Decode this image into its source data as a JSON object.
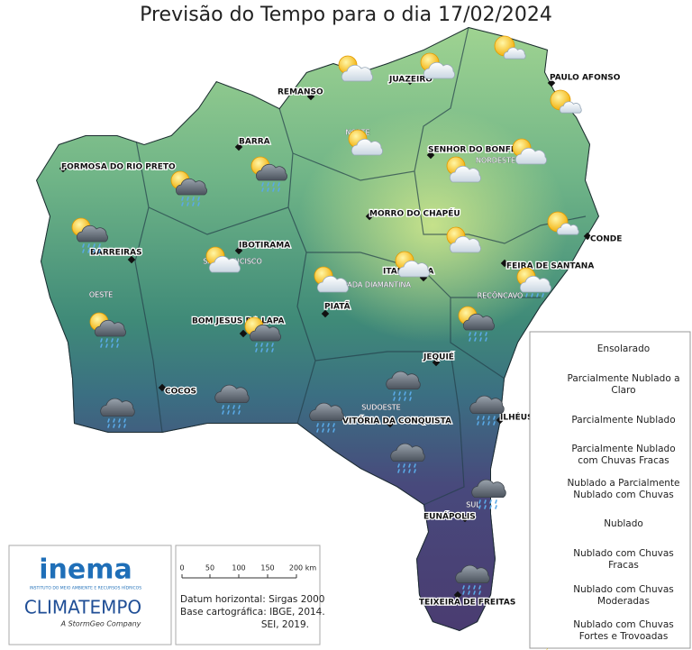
{
  "title": "Previsão do Tempo para o dia 17/02/2024",
  "cities": [
    "REMANSO",
    "JUAZEIRO",
    "PAULO AFONSO",
    "BARRA",
    "SENHOR DO BONFIM",
    "FORMOSA DO RIO PRETO",
    "MORRO DO CHAPÉU",
    "CONDE",
    "IBOTIRAMA",
    "BARREIRAS",
    "FEIRA DE SANTANA",
    "ITABERABA",
    "PIATÃ",
    "BOM JESUS DA LAPA",
    "JEQUIÉ",
    "COCOS",
    "ILHÉUS",
    "VITÓRIA DA CONQUISTA",
    "EUNÁPOLIS",
    "TEIXEIRA DE FREITAS"
  ],
  "regions": [
    "NORTE",
    "NORDESTE",
    "SÃO FRANCISCO",
    "CHAPADA DIAMANTINA",
    "OESTE",
    "RECÔNCAVO",
    "SUDOESTE",
    "SUL"
  ],
  "legend": [
    "Ensolarado",
    "Parcialmente Nublado a Claro",
    "Parcialmente Nublado",
    "Parcialmente Nublado com Chuvas Fracas",
    "Nublado a Parcialmente Nublado com Chuvas",
    "Nublado",
    "Nublado com Chuvas Fracas",
    "Nublado com Chuvas Moderadas",
    "Nublado com Chuvas Fortes e Trovoadas"
  ],
  "scale": {
    "ticks": [
      "0",
      "50",
      "100",
      "150",
      "200 km"
    ]
  },
  "datum": [
    "Datum horizontal: Sirgas 2000",
    "Base cartográfica: IBGE, 2014.",
    "SEI, 2019."
  ],
  "logos": {
    "inema": "inema",
    "inema_subtitle": "INSTITUTO DO MEIO AMBIENTE E RECURSOS HÍDRICOS",
    "climatempo": "CLIMATEMPO",
    "climatempo_subtitle": "A StormGeo Company"
  }
}
